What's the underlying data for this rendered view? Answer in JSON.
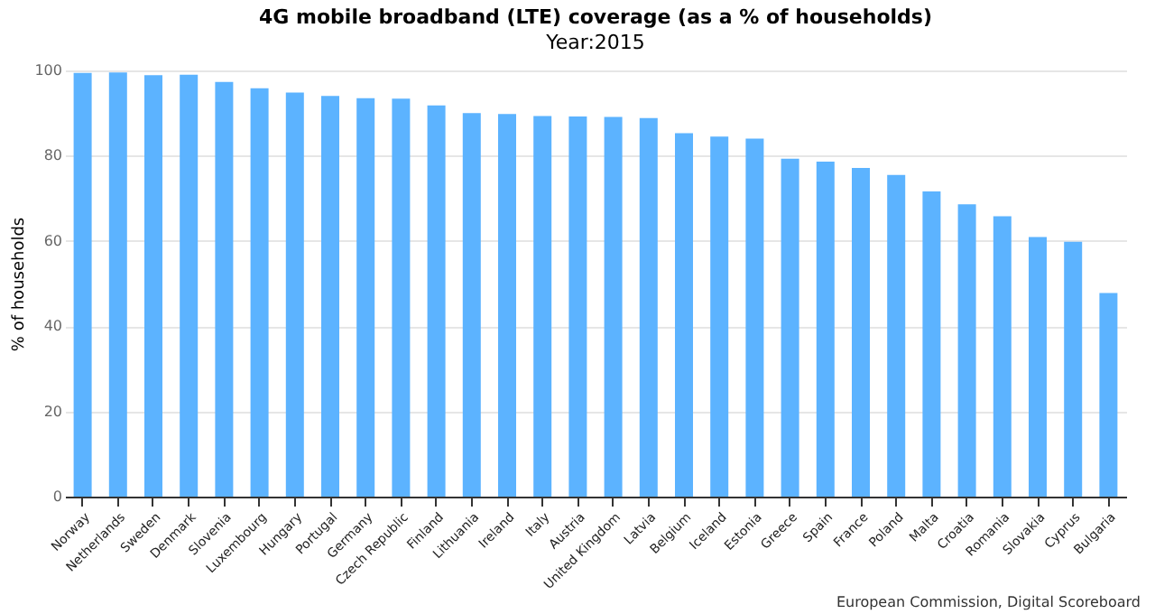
{
  "chart_data": {
    "type": "bar",
    "title": "4G mobile broadband (LTE) coverage (as a % of households)",
    "subtitle": "Year:2015",
    "ylabel": "% of households",
    "categories": [
      "Norway",
      "Netherlands",
      "Sweden",
      "Denmark",
      "Slovenia",
      "Luxembourg",
      "Hungary",
      "Portugal",
      "Germany",
      "Czech Republic",
      "Finland",
      "Lithuania",
      "Ireland",
      "Italy",
      "Austria",
      "United Kingdom",
      "Latvia",
      "Belgium",
      "Iceland",
      "Estonia",
      "Greece",
      "Spain",
      "France",
      "Poland",
      "Malta",
      "Croatia",
      "Romania",
      "Slovakia",
      "Cyprus",
      "Bulgaria"
    ],
    "values": [
      99.4,
      99.5,
      98.9,
      99.0,
      97.3,
      95.8,
      94.8,
      94.0,
      93.5,
      93.4,
      91.8,
      90.0,
      89.8,
      89.3,
      89.2,
      89.1,
      88.8,
      85.3,
      84.5,
      84.0,
      79.3,
      78.6,
      77.1,
      75.5,
      71.6,
      68.6,
      65.8,
      60.9,
      59.8,
      47.8
    ],
    "color": "#5cb3ff",
    "ylim": [
      0,
      100
    ],
    "yticks": [
      0,
      20,
      40,
      60,
      80,
      100
    ],
    "grid": "y",
    "annotations": [
      "European Commission, Digital Scoreboard"
    ]
  }
}
